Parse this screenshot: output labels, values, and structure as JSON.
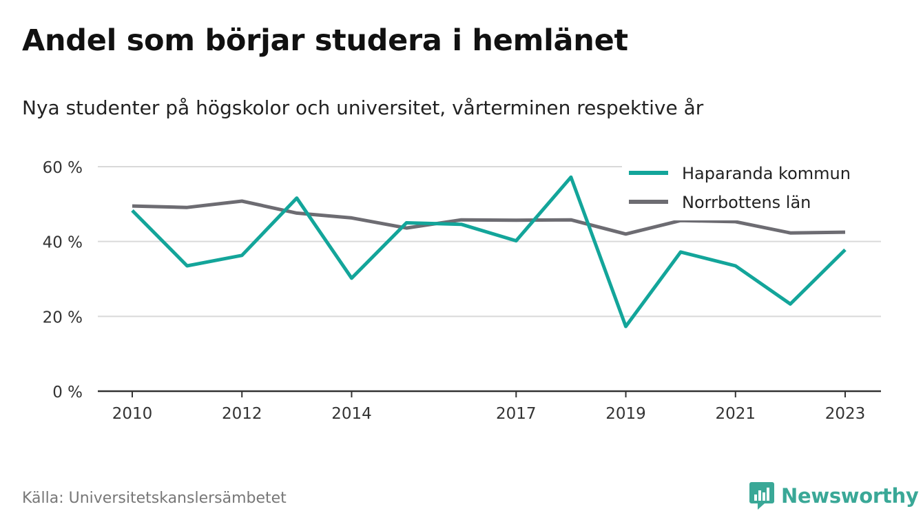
{
  "title": "Andel som börjar studera i hemlänet",
  "subtitle": "Nya studenter på högskolor och universitet, vårterminen respektive år",
  "source": "Källa: Universitetskanslersämbetet",
  "brand": "Newsworthy",
  "colors": {
    "haparanda": "#13a59a",
    "norrbotten": "#6d6c72",
    "grid": "#d9d9d9",
    "axis": "#333333",
    "brand": "#3aa897"
  },
  "chart_data": {
    "type": "line",
    "x": [
      2010,
      2011,
      2012,
      2013,
      2014,
      2015,
      2016,
      2017,
      2018,
      2019,
      2020,
      2021,
      2022,
      2023
    ],
    "x_tick_labels": [
      "2010",
      "2012",
      "2014",
      "2017",
      "2019",
      "2021",
      "2023"
    ],
    "y_ticks": [
      0,
      20,
      40,
      60
    ],
    "y_tick_labels": [
      "0 %",
      "20 %",
      "40 %",
      "60 %"
    ],
    "ylim": [
      0,
      60
    ],
    "grid": true,
    "legend_position": "top-right",
    "series": [
      {
        "name": "Haparanda kommun",
        "values": [
          48.3,
          33.5,
          36.3,
          51.6,
          30.2,
          45.0,
          44.6,
          40.2,
          57.2,
          17.3,
          37.2,
          33.5,
          23.3,
          37.8
        ]
      },
      {
        "name": "Norrbottens län",
        "values": [
          49.5,
          49.1,
          50.8,
          47.6,
          46.3,
          43.6,
          45.8,
          45.7,
          45.8,
          42.0,
          45.6,
          45.3,
          42.3,
          42.5
        ]
      }
    ]
  }
}
